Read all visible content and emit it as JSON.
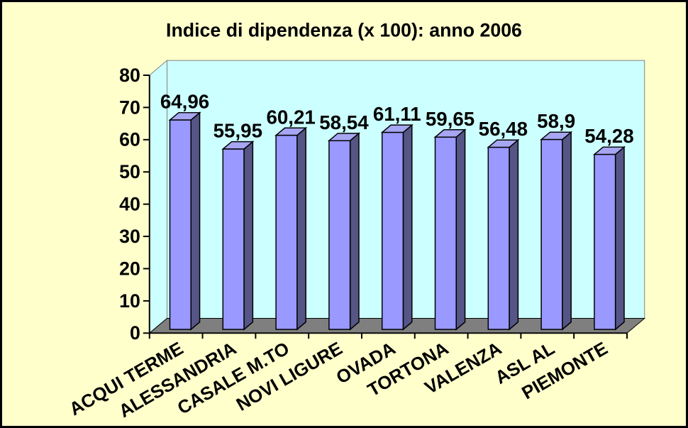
{
  "chart_data": {
    "type": "bar",
    "style": "3d-column",
    "title": "Indice di dipendenza (x 100): anno 2006",
    "categories": [
      "ACQUI TERME",
      "ALESSANDRIA",
      "CASALE M.TO",
      "NOVI LIGURE",
      "OVADA",
      "TORTONA",
      "VALENZA",
      "ASL AL",
      "PIEMONTE"
    ],
    "values": [
      64.96,
      55.95,
      60.21,
      58.54,
      61.11,
      59.65,
      56.48,
      58.9,
      54.28
    ],
    "value_labels": [
      "64,96",
      "55,95",
      "60,21",
      "58,54",
      "61,11",
      "59,65",
      "56,48",
      "58,9",
      "54,28"
    ],
    "xlabel": "",
    "ylabel": "",
    "ylim": [
      0,
      80
    ],
    "ytick_step": 10,
    "ytick_labels": [
      "0",
      "10",
      "20",
      "30",
      "40",
      "50",
      "60",
      "70",
      "80"
    ],
    "grid": false,
    "legend": false,
    "category_label_rotation_deg": -30,
    "colors": {
      "background": "#FFFFCC",
      "wall": "#CCFFFF",
      "floor": "#7F7F7F",
      "bar_front": "#9999FF",
      "bar_top": "#A6A6F2",
      "bar_side": "#555586",
      "outline": "#000000",
      "edge": "#808080",
      "text": "#000000"
    }
  }
}
